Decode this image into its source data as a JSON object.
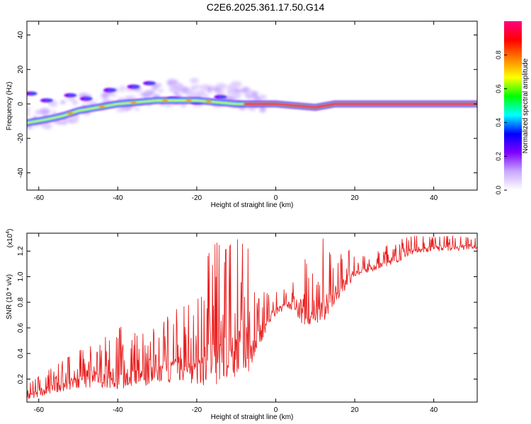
{
  "title": "C2E6.2025.361.17.50.G14",
  "chart_data": [
    {
      "type": "heatmap",
      "name": "spectrogram",
      "xlabel": "Height of straight line (km)",
      "ylabel": "Frequency (Hz)",
      "xlim": [
        -63,
        51
      ],
      "ylim": [
        -50,
        48
      ],
      "x_ticks": [
        -60,
        -40,
        -20,
        0,
        20,
        40
      ],
      "x_tick_labels": [
        "-60",
        "-40",
        "-20",
        "0",
        "20",
        "40"
      ],
      "y_ticks": [
        -40,
        -20,
        0,
        20,
        40
      ],
      "y_tick_labels": [
        "-40",
        "-20",
        "0",
        "20",
        "40"
      ],
      "colorbar": {
        "label": "Normalized spectral amplitude",
        "range": [
          0,
          1
        ],
        "ticks": [
          0.0,
          0.2,
          0.4,
          0.6,
          0.8
        ],
        "tick_labels": [
          "0.0",
          "0.2",
          "0.4",
          "0.6",
          "0.8"
        ],
        "colors": [
          "#ffffff",
          "#c8a8ff",
          "#8000ff",
          "#0000ff",
          "#00ffff",
          "#00ff00",
          "#ffff00",
          "#ff8000",
          "#ff0000",
          "#ff0080"
        ]
      },
      "ridge": {
        "x": [
          -63,
          -58,
          -54,
          -50,
          -45,
          -40,
          -35,
          -30,
          -25,
          -20,
          -15,
          -10,
          -5,
          0,
          5,
          10,
          15,
          20,
          30,
          40,
          51
        ],
        "frequency": [
          -11,
          -9,
          -7,
          -4,
          -2,
          0,
          1,
          2,
          2,
          2,
          1,
          0,
          0,
          0,
          -1,
          -2,
          0,
          0,
          0,
          0,
          0
        ]
      },
      "scatter_components": {
        "x": [
          -62,
          -58,
          -52,
          -48,
          -42,
          -36,
          -32,
          -26,
          -20,
          -14
        ],
        "frequency": [
          6,
          2,
          5,
          3,
          8,
          10,
          12,
          3,
          1,
          4
        ]
      }
    },
    {
      "type": "line",
      "name": "snr",
      "xlabel": "Height of straight line (km)",
      "ylabel": "SNR (10 * v/v)",
      "y_multiplier_label": "(x10",
      "y_multiplier_exponent": "4",
      "y_multiplier_suffix": ")",
      "color": "#e82020",
      "xlim": [
        -63,
        51
      ],
      "ylim": [
        0.02,
        1.34
      ],
      "x_ticks": [
        -60,
        -40,
        -20,
        0,
        20,
        40
      ],
      "x_tick_labels": [
        "-60",
        "-40",
        "-20",
        "0",
        "20",
        "40"
      ],
      "y_ticks": [
        0.2,
        0.4,
        0.6,
        0.8,
        1.0,
        1.2
      ],
      "y_tick_labels": [
        "0.2",
        "0.4",
        "0.6",
        "0.8",
        "1.0",
        "1.2"
      ],
      "envelope": {
        "x": [
          -63,
          -60,
          -55,
          -50,
          -45,
          -40,
          -35,
          -30,
          -25,
          -20,
          -17,
          -15,
          -13,
          -10,
          -7,
          -5,
          -2,
          0,
          3,
          5,
          7,
          10,
          12,
          15,
          18,
          20,
          25,
          30,
          35,
          40,
          45,
          51
        ],
        "low": [
          0.04,
          0.06,
          0.1,
          0.12,
          0.14,
          0.12,
          0.14,
          0.16,
          0.18,
          0.15,
          0.15,
          0.1,
          0.2,
          0.2,
          0.25,
          0.4,
          0.6,
          0.7,
          0.75,
          0.72,
          0.6,
          0.65,
          0.6,
          0.8,
          0.9,
          1.0,
          1.05,
          1.1,
          1.18,
          1.2,
          1.2,
          1.22
        ],
        "high": [
          0.15,
          0.22,
          0.32,
          0.42,
          0.48,
          0.62,
          0.55,
          0.62,
          0.75,
          0.8,
          1.18,
          1.27,
          1.2,
          1.3,
          1.22,
          0.8,
          0.92,
          0.9,
          0.9,
          0.98,
          1.15,
          1.05,
          1.3,
          1.1,
          1.25,
          1.15,
          1.18,
          1.28,
          1.32,
          1.31,
          1.32,
          1.3
        ]
      }
    }
  ]
}
